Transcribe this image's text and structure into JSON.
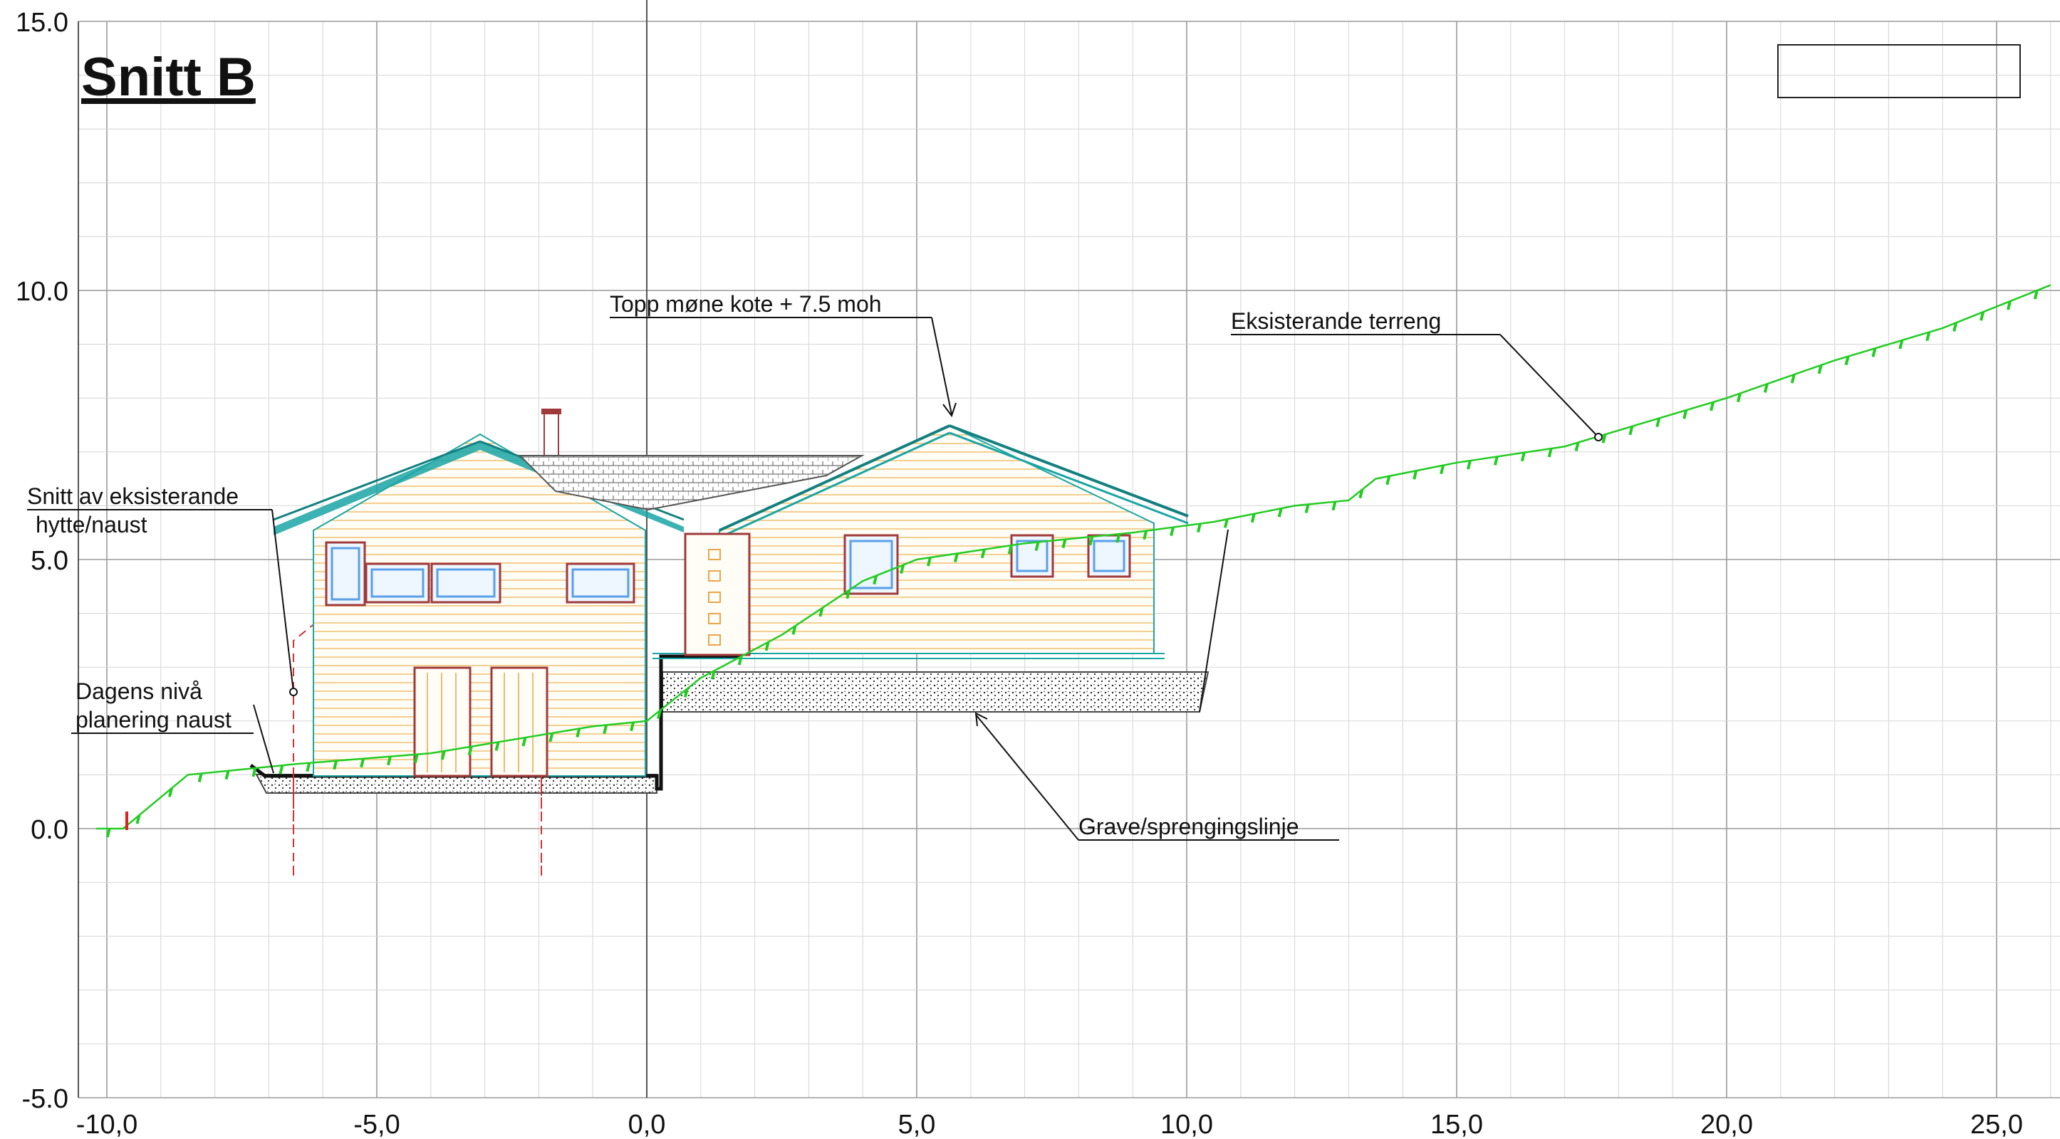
{
  "title": "Snitt B",
  "axes": {
    "x_ticks": [
      -10.0,
      -5.0,
      0.0,
      5.0,
      10.0,
      15.0,
      20.0,
      25.0
    ],
    "y_ticks": [
      -5.0,
      0.0,
      5.0,
      10.0,
      15.0
    ],
    "x_label_format": "comma",
    "y_label_format": "dot",
    "xlim": [
      -10.5,
      26.0
    ],
    "ylim": [
      -5.0,
      15.0
    ],
    "grid": true,
    "minor_grid_step": 1.0
  },
  "annotations": {
    "ridge": "Topp møne kote + 7.5 moh",
    "terrain": "Eksisterande terreng",
    "existing_line1": "Snitt av eksisterande",
    "existing_line2": "hytte/naust",
    "level_line1": "Dagens nivå",
    "level_line2": "planering naust",
    "excavation": "Grave/sprengingslinje"
  },
  "colors": {
    "terrain": "#22cc22",
    "roof": "#1aa5a5",
    "wall": "#e8a74a",
    "trim": "#a03a3a",
    "window_glass": "#5aa0e8",
    "dashed_outline": "#cc3333",
    "foundation": "#222222"
  }
}
